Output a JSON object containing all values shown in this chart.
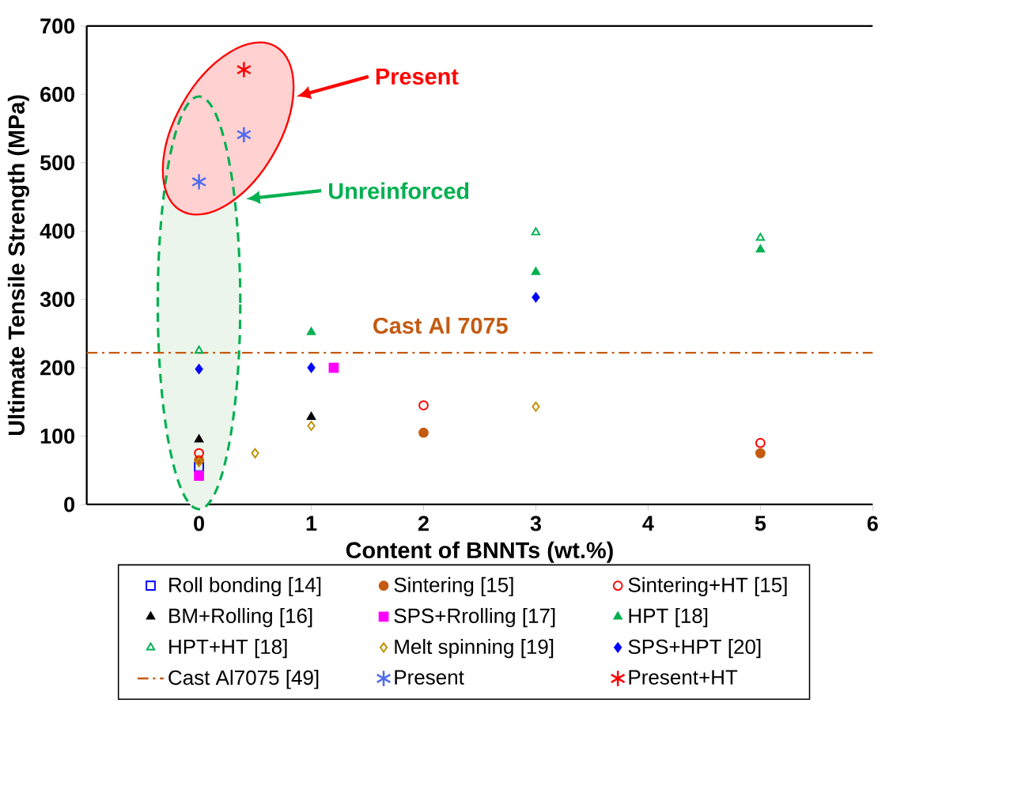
{
  "chart_data": {
    "type": "scatter",
    "xlabel": "Content of BNNTs (wt.%)",
    "ylabel": "Ultimate Tensile Strength (MPa)",
    "xlim": [
      -1,
      6
    ],
    "xticks": [
      0,
      1,
      2,
      3,
      4,
      5,
      6
    ],
    "ylim": [
      0,
      700
    ],
    "yticks": [
      0,
      100,
      200,
      300,
      400,
      500,
      600,
      700
    ],
    "legend": "bottom",
    "series": [
      {
        "name": "Roll bonding [14]",
        "color": "#0000ff",
        "marker": "square",
        "x": [
          0
        ],
        "values": [
          55
        ]
      },
      {
        "name": "Sintering [15]",
        "color": "#c55a11",
        "marker": "circle",
        "x": [
          0,
          2,
          5
        ],
        "values": [
          65,
          105,
          75
        ]
      },
      {
        "name": "Sintering+HT [15]",
        "color": "#ff0000",
        "marker": "circle",
        "x": [
          0,
          2,
          5
        ],
        "values": [
          75,
          145,
          90
        ]
      },
      {
        "name": "BM+Rolling [16]",
        "color": "#000000",
        "marker": "triangle",
        "x": [
          0,
          1
        ],
        "values": [
          95,
          128
        ]
      },
      {
        "name": "SPS+Rrolling [17]",
        "color": "#ff00ff",
        "marker": "square",
        "x": [
          0,
          1.2
        ],
        "values": [
          42,
          200
        ]
      },
      {
        "name": "HPT [18]",
        "color": "#00b050",
        "marker": "triangle",
        "x": [
          1,
          3,
          5
        ],
        "values": [
          252,
          340,
          373
        ]
      },
      {
        "name": "HPT+HT [18]",
        "color": "#00b050",
        "marker": "triangle",
        "x": [
          0,
          3,
          5
        ],
        "values": [
          225,
          398,
          390
        ]
      },
      {
        "name": "Melt spinning [19]",
        "color": "#bf9000",
        "marker": "diamond",
        "x": [
          0,
          0.5,
          1,
          3
        ],
        "values": [
          62,
          75,
          115,
          143
        ]
      },
      {
        "name": "SPS+HPT [20]",
        "color": "#0000ff",
        "marker": "diamond",
        "x": [
          0,
          1,
          3
        ],
        "values": [
          198,
          200,
          303
        ]
      },
      {
        "name": "Cast Al7075 [49]",
        "type": "line",
        "color": "#c55a11",
        "marker": "none",
        "line_style": "dashdot",
        "x": [
          -1,
          6
        ],
        "values": [
          222,
          222
        ]
      },
      {
        "name": "Present",
        "color": "#4f6bed",
        "marker": "cross",
        "x": [
          0,
          0.4
        ],
        "values": [
          472,
          541
        ]
      },
      {
        "name": "Present+HT",
        "color": "#ff0000",
        "marker": "cross",
        "x": [
          0.4
        ],
        "values": [
          636
        ]
      }
    ],
    "annotations": [
      "Present",
      "Unreinforced",
      "Cast Al 7075"
    ]
  }
}
